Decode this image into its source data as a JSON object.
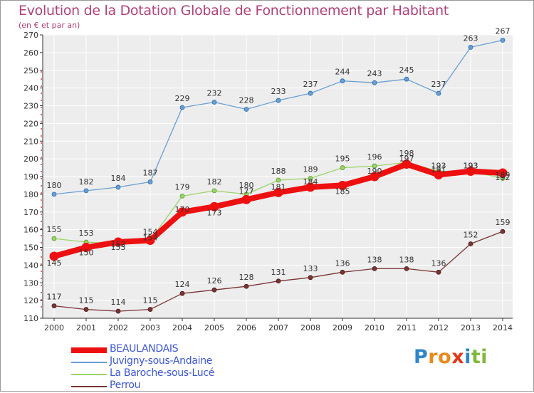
{
  "title": "Evolution de la Dotation Globale de Fonctionnement par Habitant",
  "subtitle": "(en € et par an)",
  "logo": {
    "letters": [
      "P",
      "r",
      "o",
      "x",
      "i",
      "t",
      "i"
    ],
    "colors": [
      "#2f86c9",
      "#e98a1c",
      "#e98a1c",
      "#e0391a",
      "#2f86c9",
      "#7fb83a",
      "#7fb83a"
    ]
  },
  "chart_data": {
    "type": "line",
    "x": [
      "2000",
      "2001",
      "2002",
      "2003",
      "2004",
      "2005",
      "2006",
      "2007",
      "2008",
      "2009",
      "2010",
      "2011",
      "2012",
      "2013",
      "2014"
    ],
    "ylim": [
      110,
      270
    ],
    "yticks": [
      "110",
      "120",
      "130",
      "140",
      "150",
      "160",
      "170",
      "180",
      "190",
      "200",
      "210",
      "220",
      "230",
      "240",
      "250",
      "260",
      "270"
    ],
    "grid": true,
    "legend_position": "bottom-left",
    "series": [
      {
        "name": "BEAULANDAIS",
        "color": "#ee1010",
        "values": [
          145,
          150,
          153,
          154,
          170,
          173,
          177,
          181,
          184,
          185,
          190,
          197,
          191,
          193,
          192
        ],
        "labels": [
          "145",
          "150",
          "153",
          "154",
          "170",
          "173",
          "177",
          "181",
          "184",
          "185",
          "190",
          "197",
          "191",
          "193",
          "192"
        ]
      },
      {
        "name": "Juvigny-sous-Andaine",
        "color": "#6a9fd4",
        "values": [
          180,
          182,
          184,
          187,
          229,
          232,
          228,
          233,
          237,
          244,
          243,
          245,
          237,
          263,
          267
        ],
        "labels": [
          "180",
          "182",
          "184",
          "187",
          "229",
          "232",
          "228",
          "233",
          "237",
          "244",
          "243",
          "245",
          "237",
          "263",
          "267"
        ]
      },
      {
        "name": "La Baroche-sous-Lucé",
        "color": "#9bd46a",
        "values": [
          155,
          153,
          152,
          154,
          179,
          182,
          180,
          188,
          189,
          195,
          196,
          198,
          193,
          193,
          189
        ],
        "labels": [
          "155",
          "153",
          "152",
          "154",
          "179",
          "182",
          "180",
          "188",
          "189",
          "195",
          "196",
          "198",
          "193",
          "193",
          "189"
        ]
      },
      {
        "name": "Perrou",
        "color": "#7a3535",
        "values": [
          117,
          115,
          114,
          115,
          124,
          126,
          128,
          131,
          133,
          136,
          138,
          138,
          136,
          152,
          159
        ],
        "labels": [
          "117",
          "115",
          "114",
          "115",
          "124",
          "126",
          "128",
          "131",
          "133",
          "136",
          "138",
          "138",
          "136",
          "152",
          "159"
        ]
      }
    ]
  }
}
